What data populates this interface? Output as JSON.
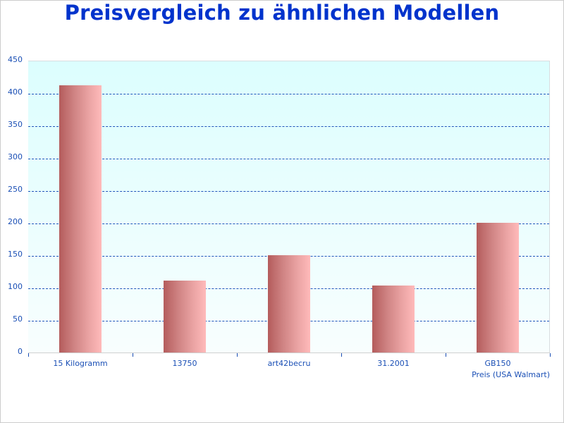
{
  "title": "Preisvergleich zu ähnlichen Modellen",
  "colors": {
    "title": "#0033cc",
    "axis_text": "#1a4fb5",
    "gridline": "#2255bb",
    "plot_bg_top": "#dcfefe",
    "plot_bg_bottom": "#f8fefe",
    "bar_dark": "#b45c5c",
    "bar_light": "#ffbaba"
  },
  "y_ticks": [
    "450",
    "400",
    "350",
    "300",
    "250",
    "200",
    "150",
    "100",
    "50",
    "0"
  ],
  "x_labels": [
    "15 Kilogramm",
    "13750",
    "art42becru",
    "31.2001",
    "GB150"
  ],
  "series_label": "Preis (USA Walmart)",
  "chart_data": {
    "type": "bar",
    "title": "Preisvergleich zu ähnlichen Modellen",
    "categories": [
      "15 Kilogramm",
      "13750",
      "art42becru",
      "31.2001",
      "GB150"
    ],
    "series": [
      {
        "name": "Preis (USA Walmart)",
        "values": [
          412,
          111,
          150,
          103,
          200
        ]
      }
    ],
    "xlabel": "",
    "ylabel": "",
    "ylim": [
      0,
      450
    ],
    "yticks": [
      0,
      50,
      100,
      150,
      200,
      250,
      300,
      350,
      400,
      450
    ],
    "grid": true,
    "legend_position": "bottom-right"
  }
}
